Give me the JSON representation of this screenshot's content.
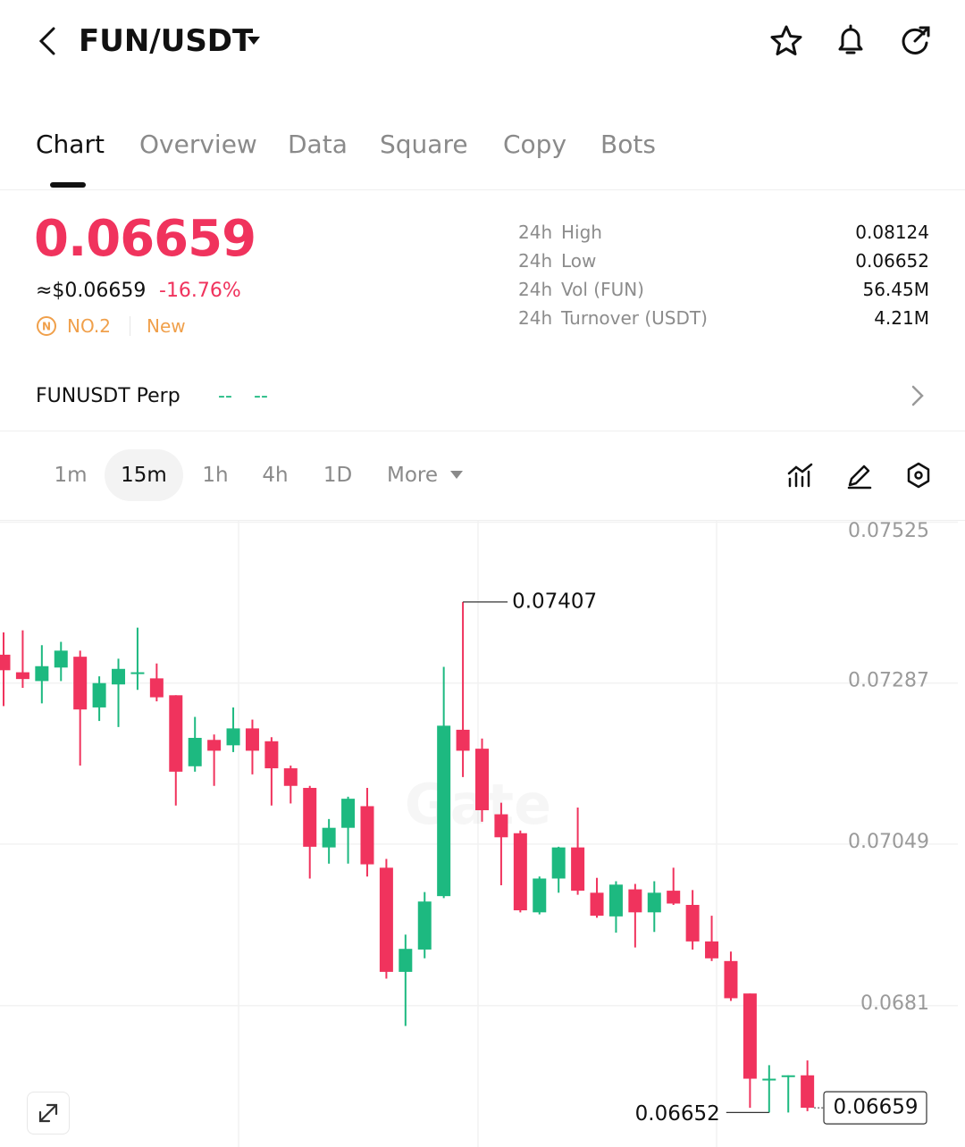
{
  "header": {
    "pair": "FUN/USDT"
  },
  "tabs": [
    "Chart",
    "Overview",
    "Data",
    "Square",
    "Copy",
    "Bots"
  ],
  "price": {
    "last": "0.06659",
    "usd": "≈$0.06659",
    "change": "-16.76%",
    "rank": "NO.2",
    "tag": "New"
  },
  "stats": [
    {
      "period": "24h",
      "name": "High",
      "value": "0.08124"
    },
    {
      "period": "24h",
      "name": "Low",
      "value": "0.06652"
    },
    {
      "period": "24h",
      "name": "Vol (FUN)",
      "value": "56.45M"
    },
    {
      "period": "24h",
      "name": "Turnover (USDT)",
      "value": "4.21M"
    }
  ],
  "perp": {
    "name": "FUNUSDT Perp",
    "values": [
      "--",
      "--"
    ]
  },
  "intervals": [
    "1m",
    "15m",
    "1h",
    "4h",
    "1D",
    "More"
  ],
  "chart_data": {
    "type": "candlestick",
    "watermark": "Gate",
    "ylim": [
      0.06601,
      0.07527
    ],
    "yticks": [
      0.07525,
      0.07287,
      0.07049,
      0.0681
    ],
    "up_color": "#1db980",
    "down_color": "#f0335d",
    "open": [
      0.07329,
      0.07303,
      0.0729,
      0.0731,
      0.07326,
      0.07251,
      0.07285,
      0.07301,
      0.07294,
      0.07269,
      0.07164,
      0.07203,
      0.07195,
      0.0722,
      0.07201,
      0.07161,
      0.07132,
      0.07044,
      0.07073,
      0.07105,
      0.07014,
      0.0686,
      0.06893,
      0.06972,
      0.07218,
      0.0719,
      0.07093,
      0.07065,
      0.06948,
      0.06998,
      0.07044,
      0.06977,
      0.06942,
      0.06982,
      0.06948,
      0.0698,
      0.06959,
      0.06905,
      0.06876,
      0.06828,
      0.067,
      0.06705,
      0.06707
    ],
    "high": [
      0.07362,
      0.07365,
      0.07343,
      0.07348,
      0.07335,
      0.07297,
      0.07323,
      0.07369,
      0.07316,
      0.07269,
      0.07237,
      0.07211,
      0.07251,
      0.07233,
      0.07207,
      0.07165,
      0.07135,
      0.07086,
      0.07119,
      0.07132,
      0.07027,
      0.06915,
      0.06978,
      0.07311,
      0.07407,
      0.07205,
      0.0711,
      0.07069,
      0.07001,
      0.07045,
      0.07103,
      0.06999,
      0.06994,
      0.0699,
      0.06994,
      0.07014,
      0.06981,
      0.06943,
      0.0689,
      0.06828,
      0.06722,
      0.06707,
      0.06729
    ],
    "low": [
      0.07253,
      0.0728,
      0.07257,
      0.0729,
      0.07165,
      0.07231,
      0.07222,
      0.07277,
      0.0726,
      0.07106,
      0.07156,
      0.07135,
      0.07185,
      0.07152,
      0.07106,
      0.07109,
      0.06998,
      0.0702,
      0.0702,
      0.07001,
      0.0685,
      0.0678,
      0.0688,
      0.06969,
      0.07148,
      0.07082,
      0.06988,
      0.06948,
      0.06945,
      0.06977,
      0.06974,
      0.0694,
      0.06918,
      0.06896,
      0.06919,
      0.06959,
      0.06893,
      0.06876,
      0.06817,
      0.06659,
      0.06652,
      0.06652,
      0.06654
    ],
    "close": [
      0.07306,
      0.07293,
      0.07312,
      0.07335,
      0.07248,
      0.07287,
      0.07308,
      0.07303,
      0.07266,
      0.07156,
      0.07206,
      0.07187,
      0.0722,
      0.07187,
      0.07161,
      0.07135,
      0.07045,
      0.07073,
      0.07116,
      0.07019,
      0.0686,
      0.06894,
      0.06964,
      0.07224,
      0.07187,
      0.07099,
      0.07059,
      0.06951,
      0.06998,
      0.07044,
      0.0698,
      0.06943,
      0.06989,
      0.06948,
      0.06977,
      0.06961,
      0.06905,
      0.0688,
      0.06821,
      0.06702,
      0.06702,
      0.06707,
      0.06659
    ]
  }
}
